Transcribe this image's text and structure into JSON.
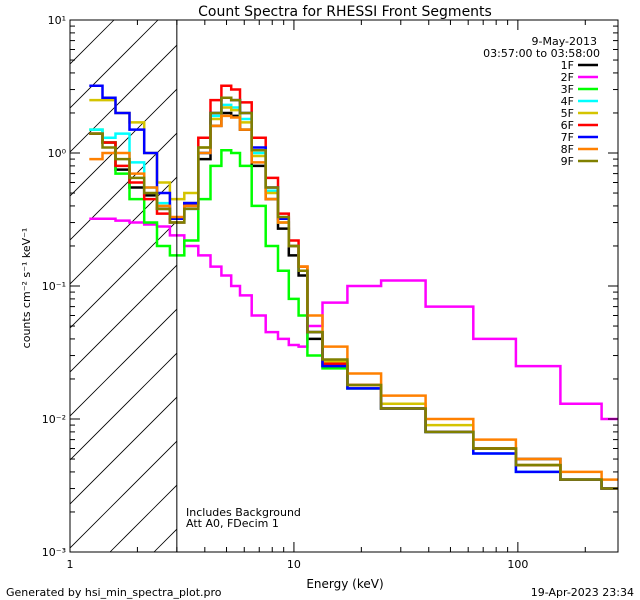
{
  "chart_data": {
    "type": "line",
    "title": "Count Spectra for RHESSI Front Segments",
    "xlabel": "Energy (keV)",
    "ylabel": "counts cm⁻² s⁻¹ keV⁻¹",
    "x_scale": "log",
    "y_scale": "log",
    "xlim": [
      1,
      280
    ],
    "ylim": [
      0.001,
      10
    ],
    "x_ticks": [
      {
        "value": 1,
        "label": "1"
      },
      {
        "value": 10,
        "label": "10"
      },
      {
        "value": 100,
        "label": "100"
      }
    ],
    "y_ticks": [
      {
        "value": 0.001,
        "label": "10⁻³"
      },
      {
        "value": 0.01,
        "label": "10⁻²"
      },
      {
        "value": 0.1,
        "label": "10⁻¹"
      },
      {
        "value": 1,
        "label": "10⁰"
      },
      {
        "value": 10,
        "label": "10¹"
      }
    ],
    "shaded_region_upper_kev": 3,
    "date": "9-May-2013",
    "time_range": "03:57:00 to 03:58:00",
    "annotations": [
      "Includes Background",
      "Att A0, FDecim 1"
    ],
    "series": [
      {
        "name": "1F",
        "color": "#000000",
        "x": [
          1.3,
          1.5,
          1.7,
          2.0,
          2.3,
          2.6,
          3.0,
          3.5,
          4.0,
          4.5,
          5.0,
          5.5,
          6.0,
          7.0,
          8.0,
          9.0,
          10.0,
          11.0,
          12.0,
          15.0,
          20.0,
          30.0,
          50.0,
          80.0,
          120.0,
          200.0,
          280.0
        ],
        "values": [
          1.4,
          1.2,
          0.75,
          0.55,
          0.48,
          0.38,
          0.32,
          0.42,
          0.9,
          1.6,
          2.0,
          1.9,
          1.5,
          0.8,
          0.45,
          0.27,
          0.17,
          0.12,
          0.04,
          0.025,
          0.017,
          0.012,
          0.008,
          0.006,
          0.005,
          0.0035,
          0.003
        ]
      },
      {
        "name": "2F",
        "color": "#ff00ff",
        "x": [
          1.3,
          1.5,
          1.7,
          2.0,
          2.3,
          2.6,
          3.0,
          3.5,
          4.0,
          4.5,
          5.0,
          5.5,
          6.0,
          7.0,
          8.0,
          9.0,
          10.0,
          11.0,
          12.0,
          15.0,
          20.0,
          30.0,
          50.0,
          80.0,
          120.0,
          200.0,
          280.0
        ],
        "values": [
          0.32,
          0.32,
          0.31,
          0.3,
          0.29,
          0.28,
          0.24,
          0.2,
          0.17,
          0.14,
          0.12,
          0.1,
          0.085,
          0.06,
          0.045,
          0.04,
          0.036,
          0.035,
          0.05,
          0.075,
          0.1,
          0.11,
          0.07,
          0.04,
          0.025,
          0.013,
          0.01
        ]
      },
      {
        "name": "3F",
        "color": "#00ff00",
        "x": [
          1.3,
          1.5,
          1.7,
          2.0,
          2.3,
          2.6,
          3.0,
          3.5,
          4.0,
          4.5,
          5.0,
          5.5,
          6.0,
          7.0,
          8.0,
          9.0,
          10.0,
          11.0,
          12.0,
          15.0,
          20.0,
          30.0,
          50.0,
          80.0,
          120.0,
          200.0,
          280.0
        ],
        "values": [
          1.5,
          1.2,
          0.7,
          0.45,
          0.3,
          0.2,
          0.17,
          0.22,
          0.45,
          0.8,
          1.05,
          1.0,
          0.8,
          0.4,
          0.2,
          0.13,
          0.08,
          0.06,
          0.03,
          0.024,
          0.017,
          0.012,
          0.008,
          0.006,
          0.0045,
          0.0035,
          0.003
        ]
      },
      {
        "name": "4F",
        "color": "#00ffff",
        "x": [
          1.3,
          1.5,
          1.7,
          2.0,
          2.3,
          2.6,
          3.0,
          3.5,
          4.0,
          4.5,
          5.0,
          5.5,
          6.0,
          7.0,
          8.0,
          9.0,
          10.0,
          11.0,
          12.0,
          15.0,
          20.0,
          30.0,
          50.0,
          80.0,
          120.0,
          200.0,
          280.0
        ],
        "values": [
          1.5,
          1.3,
          1.4,
          0.85,
          0.55,
          0.42,
          0.3,
          0.38,
          1.0,
          1.9,
          2.3,
          2.2,
          1.8,
          1.0,
          0.52,
          0.3,
          0.2,
          0.13,
          0.045,
          0.026,
          0.017,
          0.012,
          0.008,
          0.0055,
          0.004,
          0.0035,
          0.003
        ]
      },
      {
        "name": "5F",
        "color": "#d4c400",
        "x": [
          1.3,
          1.5,
          1.7,
          2.0,
          2.3,
          2.6,
          3.0,
          3.5,
          4.0,
          4.5,
          5.0,
          5.5,
          6.0,
          7.0,
          8.0,
          9.0,
          10.0,
          11.0,
          12.0,
          15.0,
          20.0,
          30.0,
          50.0,
          80.0,
          120.0,
          200.0,
          280.0
        ],
        "values": [
          2.5,
          2.5,
          2.0,
          1.7,
          1.0,
          0.6,
          0.45,
          0.5,
          1.1,
          1.8,
          2.2,
          2.1,
          1.7,
          0.95,
          0.5,
          0.3,
          0.2,
          0.14,
          0.045,
          0.027,
          0.018,
          0.013,
          0.009,
          0.006,
          0.0045,
          0.0035,
          0.003
        ]
      },
      {
        "name": "6F",
        "color": "#ff0000",
        "x": [
          1.3,
          1.5,
          1.7,
          2.0,
          2.3,
          2.6,
          3.0,
          3.5,
          4.0,
          4.5,
          5.0,
          5.5,
          6.0,
          7.0,
          8.0,
          9.0,
          10.0,
          11.0,
          12.0,
          15.0,
          20.0,
          30.0,
          50.0,
          80.0,
          120.0,
          200.0,
          280.0
        ],
        "values": [
          1.4,
          1.2,
          0.8,
          0.6,
          0.45,
          0.35,
          0.3,
          0.4,
          1.3,
          2.5,
          3.2,
          3.0,
          2.4,
          1.3,
          0.65,
          0.35,
          0.22,
          0.14,
          0.045,
          0.026,
          0.018,
          0.012,
          0.008,
          0.006,
          0.0045,
          0.0035,
          0.003
        ]
      },
      {
        "name": "7F",
        "color": "#0000ff",
        "x": [
          1.3,
          1.5,
          1.7,
          2.0,
          2.3,
          2.6,
          3.0,
          3.5,
          4.0,
          4.5,
          5.0,
          5.5,
          6.0,
          7.0,
          8.0,
          9.0,
          10.0,
          11.0,
          12.0,
          15.0,
          20.0,
          30.0,
          50.0,
          80.0,
          120.0,
          200.0,
          280.0
        ],
        "values": [
          3.2,
          2.6,
          2.0,
          1.5,
          1.0,
          0.5,
          0.32,
          0.42,
          1.0,
          2.0,
          2.6,
          2.5,
          2.0,
          1.1,
          0.55,
          0.32,
          0.2,
          0.13,
          0.045,
          0.025,
          0.017,
          0.012,
          0.008,
          0.0055,
          0.004,
          0.0035,
          0.003
        ]
      },
      {
        "name": "8F",
        "color": "#ff8000",
        "x": [
          1.3,
          1.5,
          1.7,
          2.0,
          2.3,
          2.6,
          3.0,
          3.5,
          4.0,
          4.5,
          5.0,
          5.5,
          6.0,
          7.0,
          8.0,
          9.0,
          10.0,
          11.0,
          12.0,
          15.0,
          20.0,
          30.0,
          50.0,
          80.0,
          120.0,
          200.0,
          280.0
        ],
        "values": [
          0.9,
          1.0,
          1.0,
          0.7,
          0.55,
          0.4,
          0.33,
          0.4,
          1.0,
          1.6,
          1.9,
          1.85,
          1.5,
          0.85,
          0.45,
          0.3,
          0.2,
          0.14,
          0.06,
          0.035,
          0.022,
          0.015,
          0.01,
          0.007,
          0.005,
          0.004,
          0.0035
        ]
      },
      {
        "name": "9F",
        "color": "#808000",
        "x": [
          1.3,
          1.5,
          1.7,
          2.0,
          2.3,
          2.6,
          3.0,
          3.5,
          4.0,
          4.5,
          5.0,
          5.5,
          6.0,
          7.0,
          8.0,
          9.0,
          10.0,
          11.0,
          12.0,
          15.0,
          20.0,
          30.0,
          50.0,
          80.0,
          120.0,
          200.0,
          280.0
        ],
        "values": [
          1.4,
          1.1,
          0.9,
          0.65,
          0.5,
          0.38,
          0.3,
          0.38,
          1.1,
          2.0,
          2.6,
          2.5,
          2.0,
          1.05,
          0.55,
          0.33,
          0.2,
          0.13,
          0.045,
          0.028,
          0.018,
          0.012,
          0.008,
          0.006,
          0.0045,
          0.0035,
          0.003
        ]
      }
    ]
  },
  "footer": {
    "left": "Generated by hsi_min_spectra_plot.pro",
    "right": "19-Apr-2023 23:34"
  }
}
